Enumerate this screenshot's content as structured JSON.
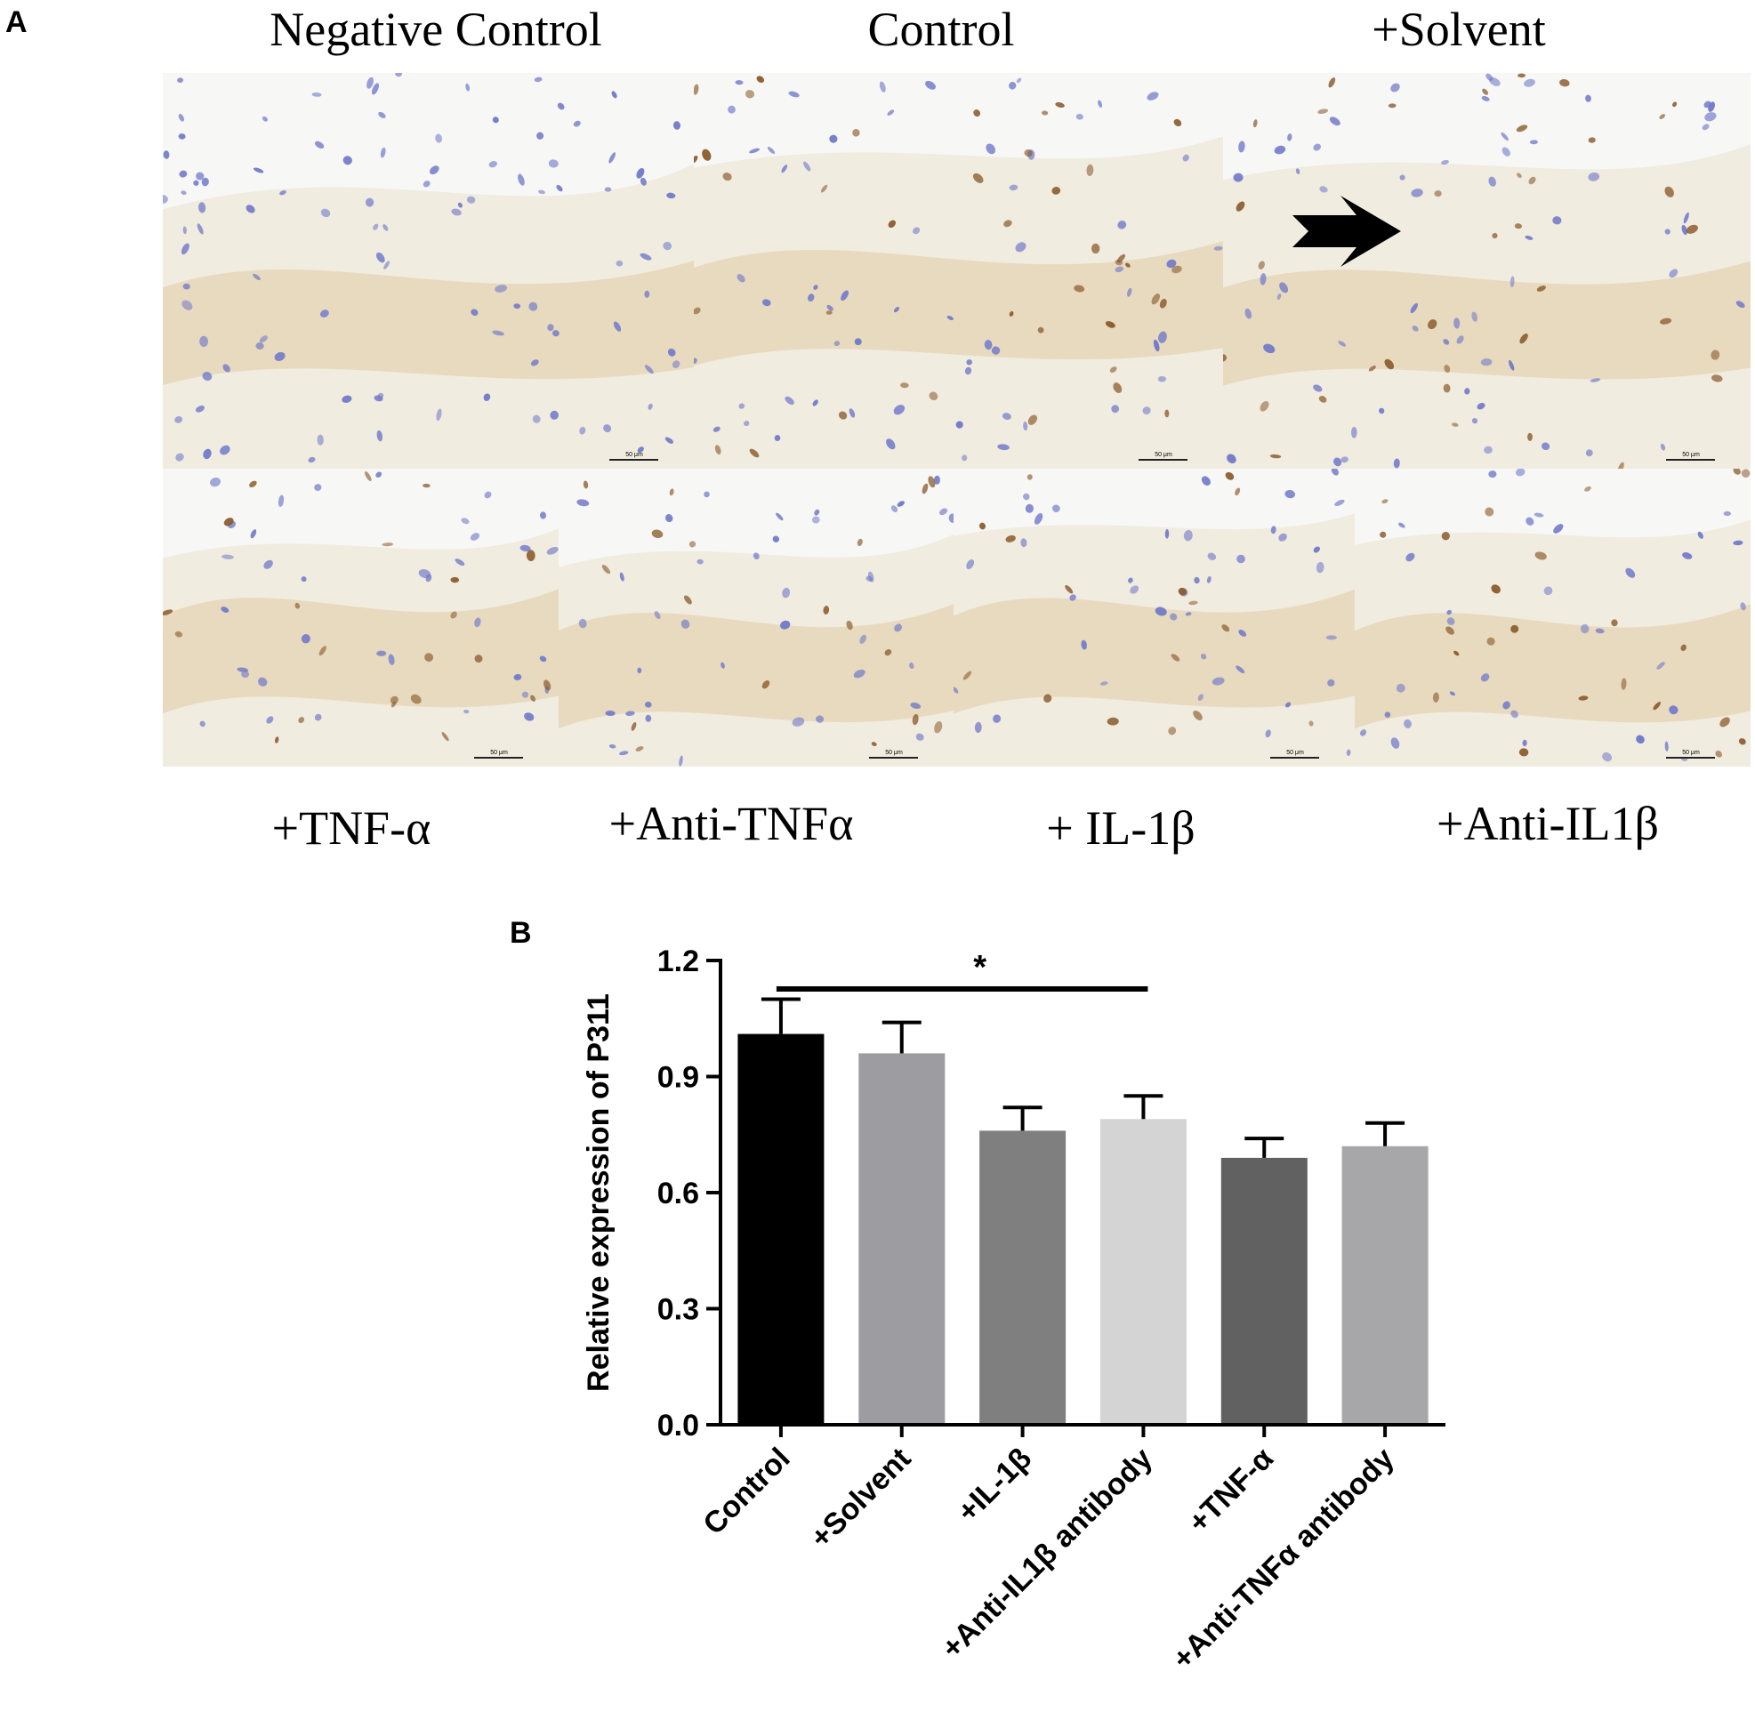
{
  "panel_a": {
    "letter": "A",
    "top_labels": [
      "Negative Control",
      "Control",
      "+Solvent"
    ],
    "bottom_labels": [
      "+TNF-α",
      "+Anti-TNFα",
      "+ IL-1β",
      "+Anti-IL1β"
    ],
    "scale_bar_label": "50 μm"
  },
  "panel_b": {
    "letter": "B"
  },
  "chart_data": {
    "type": "bar",
    "categories": [
      "Control",
      "+Solvent",
      "+IL-1β",
      "+Anti-IL1β antibody",
      "+TNF-α",
      "+Anti-TNFα antibody"
    ],
    "values": [
      1.01,
      0.96,
      0.76,
      0.79,
      0.69,
      0.72
    ],
    "errors": [
      0.09,
      0.08,
      0.06,
      0.06,
      0.05,
      0.06
    ],
    "colors": [
      "#000000",
      "#9d9ca1",
      "#7f7f7f",
      "#d4d4d4",
      "#616161",
      "#a7a7aa"
    ],
    "ylabel": "Relative expression of P311",
    "xlabel": "",
    "ylim": [
      0,
      1.2
    ],
    "yticks": [
      "0.0",
      "0.3",
      "0.6",
      "0.9",
      "1.2"
    ],
    "significance": {
      "from": "Control",
      "to": "+Anti-IL1β antibody",
      "label": "*"
    },
    "grid": false
  }
}
